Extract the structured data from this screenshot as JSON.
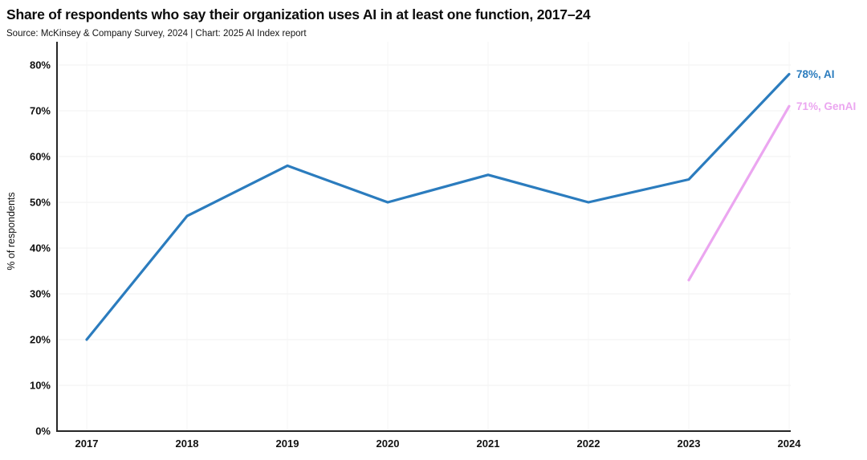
{
  "header": {
    "title": "Share of respondents who say their organization uses AI in at least one function, 2017–24",
    "source": "Source: McKinsey & Company Survey, 2024 | Chart: 2025 AI Index report"
  },
  "chart_data": {
    "type": "line",
    "title": "Share of respondents who say their organization uses AI in at least one function, 2017–24",
    "subtitle": "Source: McKinsey & Company Survey, 2024 | Chart: 2025 AI Index report",
    "xlabel": "",
    "ylabel": "% of respondents",
    "x": [
      2017,
      2018,
      2019,
      2020,
      2021,
      2022,
      2023,
      2024
    ],
    "xtick_labels": [
      "2017",
      "2018",
      "2019",
      "2020",
      "2021",
      "2022",
      "2023",
      "2024"
    ],
    "ylim": [
      0,
      80
    ],
    "yticks": [
      0,
      10,
      20,
      30,
      40,
      50,
      60,
      70,
      80
    ],
    "ytick_labels": [
      "0%",
      "10%",
      "20%",
      "30%",
      "40%",
      "50%",
      "60%",
      "70%",
      "80%"
    ],
    "grid": true,
    "legend_position": "end-of-line-labels",
    "series": [
      {
        "name": "AI",
        "color": "#2b7cbe",
        "x": [
          2017,
          2018,
          2019,
          2020,
          2021,
          2022,
          2023,
          2024
        ],
        "values": [
          20,
          47,
          58,
          50,
          56,
          50,
          55,
          78
        ],
        "end_label": "78%, AI"
      },
      {
        "name": "GenAI",
        "color": "#eba6f0",
        "x": [
          2023,
          2024
        ],
        "values": [
          33,
          71
        ],
        "end_label": "71%, GenAI"
      }
    ]
  },
  "colors": {
    "background": "#ffffff",
    "axis": "#262626",
    "grid_horizontal": "#f1f1f1",
    "grid_vertical": "#f6f6f6",
    "text": "#111111",
    "ai_line": "#2b7cbe",
    "genai_line": "#eba6f0"
  }
}
